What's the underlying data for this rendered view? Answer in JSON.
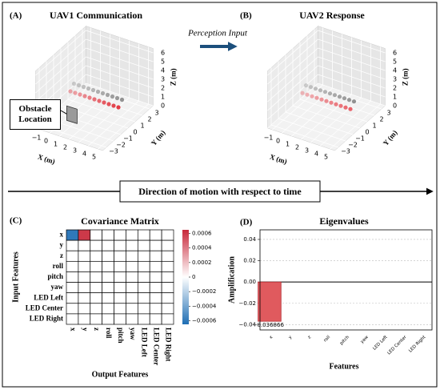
{
  "annotations": {
    "panel_labels": [
      "(A)",
      "(B)",
      "(C)",
      "(D)"
    ],
    "perception_input": "Perception Input",
    "direction": "Direction of motion with respect to time",
    "obstacle": "Obstacle Location"
  },
  "chart_data": [
    {
      "type": "scatter3d",
      "title": "UAV1 Communication",
      "xlabel": "X (m)",
      "ylabel": "Y (m)",
      "zlabel": "Z (m)",
      "xlim": [
        -1.5,
        5.5
      ],
      "ylim": [
        -3.5,
        3.5
      ],
      "zlim": [
        0,
        6.5
      ],
      "xticks": [
        {
          "value": -1,
          "label": "−1"
        },
        0,
        1,
        2,
        3,
        4,
        5
      ],
      "yticks": [
        {
          "value": -3,
          "label": "−3"
        },
        {
          "value": -2,
          "label": "−2"
        },
        {
          "value": -1,
          "label": "−1"
        },
        0,
        1,
        2,
        3
      ],
      "zticks": [
        0,
        1,
        2,
        3,
        4,
        5,
        6
      ],
      "series": [
        {
          "color": "#8c8c8c",
          "x": [
            -0.5,
            0,
            0.5,
            1,
            1.5,
            2,
            2.5,
            3,
            3.5,
            4,
            4.5
          ],
          "y": [
            0.5,
            0.5,
            0.5,
            0.5,
            0.5,
            0.5,
            0.5,
            0.5,
            0.5,
            0.5,
            0.5
          ],
          "z": [
            2.5,
            2.5,
            2.5,
            2.5,
            2.5,
            2.5,
            2.5,
            2.5,
            2.5,
            2.5,
            2.5
          ]
        },
        {
          "color": "#e0303a",
          "x": [
            -0.5,
            0,
            0.5,
            1,
            1.5,
            2,
            2.5,
            3,
            3.5,
            4,
            4.5
          ],
          "y": [
            0,
            0,
            0,
            0,
            0,
            0,
            0,
            0,
            0,
            0,
            0
          ],
          "z": [
            2,
            2,
            2,
            2,
            2,
            2,
            2,
            2,
            2,
            2,
            2
          ]
        }
      ]
    },
    {
      "type": "scatter3d",
      "title": "UAV2 Response",
      "xlabel": "X (m)",
      "ylabel": "Y (m)",
      "zlabel": "Z (m)",
      "xlim": [
        -1.5,
        5.5
      ],
      "ylim": [
        -3.5,
        3.5
      ],
      "zlim": [
        0,
        6.5
      ],
      "xticks": [
        {
          "value": -1,
          "label": "−1"
        },
        0,
        1,
        2,
        3,
        4,
        5
      ],
      "yticks": [
        {
          "value": -3,
          "label": "−3"
        },
        {
          "value": -2,
          "label": "−2"
        },
        {
          "value": -1,
          "label": "−1"
        },
        0,
        1,
        2,
        3
      ],
      "zticks": [
        0,
        1,
        2,
        3,
        4,
        5,
        6
      ],
      "series": [
        {
          "color": "#8c8c8c",
          "x": [
            -0.5,
            0,
            0.5,
            1,
            1.5,
            2,
            2.5,
            3,
            3.5,
            4,
            4.5
          ],
          "y": [
            0.5,
            0.5,
            0.5,
            0.5,
            0.5,
            0.5,
            0.5,
            0.5,
            0.5,
            0.5,
            0.5
          ],
          "z": [
            2.3,
            2.3,
            2.3,
            2.3,
            2.3,
            2.3,
            2.3,
            2.3,
            2.3,
            2.3,
            2.3
          ]
        },
        {
          "color": "#e85a62",
          "x": [
            -0.5,
            0,
            0.5,
            1,
            1.5,
            2,
            2.5,
            3,
            3.5,
            4,
            4.5
          ],
          "y": [
            0,
            0,
            0,
            0,
            0,
            0,
            0,
            0,
            0,
            0,
            0
          ],
          "z": [
            1.8,
            1.8,
            1.8,
            1.8,
            1.8,
            1.8,
            1.8,
            1.8,
            1.8,
            1.8,
            1.8
          ]
        }
      ]
    },
    {
      "type": "heatmap",
      "title": "Covariance Matrix",
      "xlabel": "Output Features",
      "ylabel": "Input Features",
      "categories": [
        "x",
        "y",
        "z",
        "roll",
        "pitch",
        "yaw",
        "LED Left",
        "LED Center",
        "LED Right"
      ],
      "values": [
        [
          -0.0006,
          0.0006,
          0,
          0,
          0,
          0,
          0,
          0,
          0
        ],
        [
          0,
          0,
          0,
          0,
          0,
          0,
          0,
          0,
          0
        ],
        [
          0,
          0,
          0,
          0,
          0,
          0,
          0,
          0,
          0
        ],
        [
          0,
          0,
          0,
          0,
          0,
          0,
          0,
          0,
          0
        ],
        [
          0,
          0,
          0,
          0,
          0,
          0,
          0,
          0,
          0
        ],
        [
          0,
          0,
          0,
          0,
          0,
          0,
          0,
          0,
          0
        ],
        [
          0,
          0,
          0,
          0,
          0,
          0,
          0,
          0,
          0
        ],
        [
          0,
          0,
          0,
          0,
          0,
          0,
          0,
          0,
          0
        ],
        [
          0,
          0,
          0,
          0,
          0,
          0,
          0,
          0,
          0
        ]
      ],
      "clim": [
        -0.00065,
        0.00065
      ],
      "cticks": [
        {
          "value": -0.0006,
          "label": "−0.0006"
        },
        {
          "value": -0.0004,
          "label": "−0.0004"
        },
        {
          "value": -0.0002,
          "label": "−0.0002"
        },
        0,
        0.0002,
        0.0004,
        0.0006
      ],
      "colors": [
        "#1f6eb4",
        "#ffffff",
        "#c8283a"
      ]
    },
    {
      "type": "bar",
      "title": "Eigenvalues",
      "xlabel": "Features",
      "ylabel": "Amplification",
      "categories": [
        "x",
        "y",
        "z",
        "roll",
        "pitch",
        "yaw",
        "LED Left",
        "LED Center",
        "LED Right"
      ],
      "values": [
        -0.036866,
        0,
        0,
        0,
        0,
        0,
        0,
        0,
        0
      ],
      "value_labels": [
        "-0.036866",
        null,
        null,
        null,
        null,
        null,
        null,
        null,
        null
      ],
      "color": "#e05a5e",
      "edgecolor": "#b02a30",
      "ylim": [
        -0.045,
        0.049
      ],
      "yticks": [
        {
          "value": -0.04,
          "label": "−0.04"
        },
        {
          "value": -0.02,
          "label": "−0.02"
        },
        {
          "value": 0,
          "label": "0.00"
        },
        0.02,
        0.04
      ],
      "grid": true
    }
  ]
}
